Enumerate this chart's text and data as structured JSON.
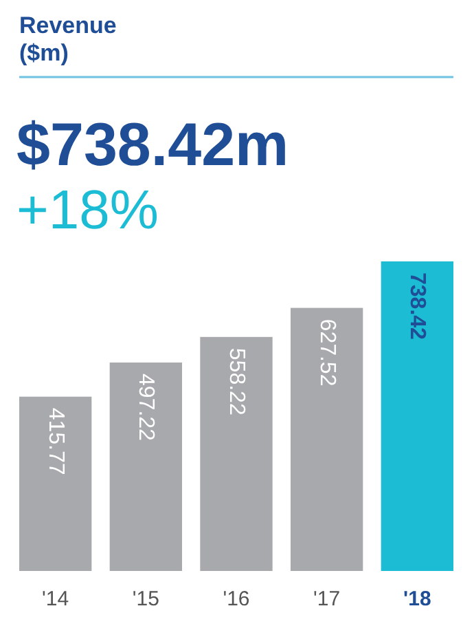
{
  "chart_data": {
    "type": "bar",
    "title": "Revenue ($m)",
    "annotations": [
      "$738.42m",
      "+18%"
    ],
    "categories": [
      "'14",
      "'15",
      "'16",
      "'17",
      "'18"
    ],
    "values": [
      415.77,
      497.22,
      558.22,
      627.52,
      738.42
    ],
    "colors": [
      "#a7a9ac",
      "#a7a9ac",
      "#a7a9ac",
      "#a7a9ac",
      "#1bbcd4"
    ],
    "data_labels": true
  }
}
